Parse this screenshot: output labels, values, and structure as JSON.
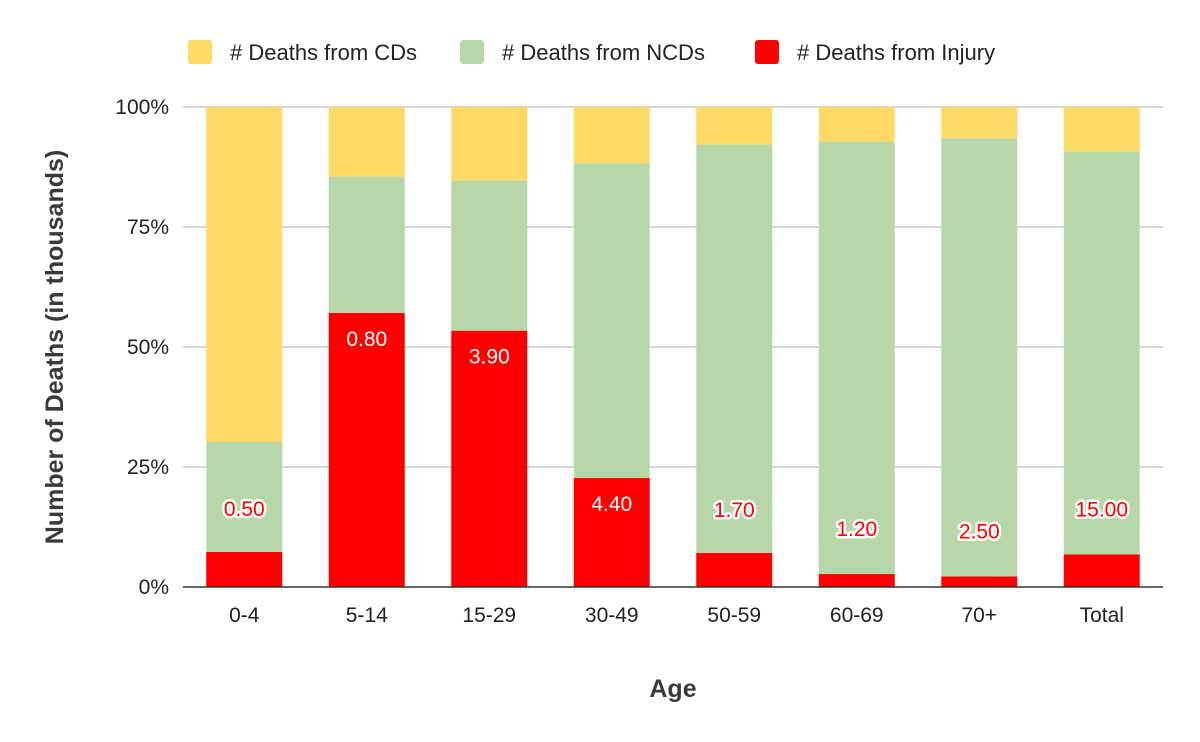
{
  "chart_data": {
    "type": "bar",
    "stacked": true,
    "normalized": true,
    "xlabel": "Age",
    "ylabel": "Number of Deaths (in thousands)",
    "categories": [
      "0-4",
      "5-14",
      "15-29",
      "30-49",
      "50-59",
      "60-69",
      "70+",
      "Total"
    ],
    "yticks": [
      "0%",
      "25%",
      "50%",
      "75%",
      "100%"
    ],
    "ylim": [
      0,
      100
    ],
    "grid": true,
    "legend": "top",
    "series": [
      {
        "name": "# Deaths from Injury",
        "color": "#ff0000",
        "percent": [
          7.3,
          57.1,
          53.4,
          22.7,
          7.1,
          2.7,
          2.2,
          6.8
        ],
        "labels": [
          "0.50",
          "0.80",
          "3.90",
          "4.40",
          "1.70",
          "1.20",
          "2.50",
          "15.00"
        ]
      },
      {
        "name": "# Deaths from NCDs",
        "color": "#b7d7a8",
        "percent": [
          22.9,
          28.4,
          31.3,
          65.6,
          85.1,
          90.1,
          91.3,
          83.9
        ]
      },
      {
        "name": "# Deaths from CDs",
        "color": "#ffd966",
        "percent": [
          69.8,
          14.5,
          15.3,
          11.7,
          7.8,
          7.2,
          6.5,
          9.3
        ]
      }
    ]
  }
}
